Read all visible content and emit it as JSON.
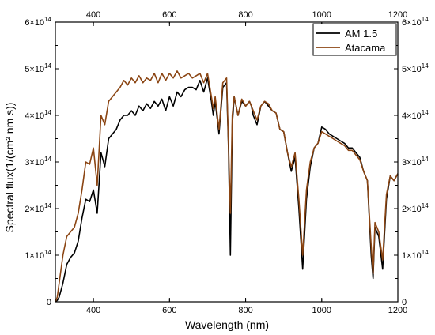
{
  "chart_data": {
    "type": "line",
    "title": "",
    "xlabel": "Wavelength (nm)",
    "ylabel": "Spectral flux(1/(cm² nm s))",
    "xlim": [
      300,
      1200
    ],
    "ylim": [
      0,
      600000000000000.0
    ],
    "x_ticks_bottom": [
      {
        "value": 400,
        "label": "400"
      },
      {
        "value": 600,
        "label": "600"
      },
      {
        "value": 800,
        "label": "800"
      },
      {
        "value": 1000,
        "label": "1000"
      },
      {
        "value": 1200,
        "label": "1200"
      }
    ],
    "x_ticks_top": [
      {
        "value": 400,
        "label": "400"
      },
      {
        "value": 600,
        "label": "600"
      },
      {
        "value": 800,
        "label": "800"
      },
      {
        "value": 1000,
        "label": "1000"
      },
      {
        "value": 1200,
        "label": "1200"
      }
    ],
    "y_ticks": [
      {
        "value": 0,
        "mantissa": "0",
        "exp": ""
      },
      {
        "value": 100000000000000.0,
        "mantissa": "1×10",
        "exp": "14"
      },
      {
        "value": 200000000000000.0,
        "mantissa": "2×10",
        "exp": "14"
      },
      {
        "value": 300000000000000.0,
        "mantissa": "3×10",
        "exp": "14"
      },
      {
        "value": 400000000000000.0,
        "mantissa": "4×10",
        "exp": "14"
      },
      {
        "value": 500000000000000.0,
        "mantissa": "5×10",
        "exp": "14"
      },
      {
        "value": 600000000000000.0,
        "mantissa": "6×10",
        "exp": "14"
      }
    ],
    "legend_position": "top-right",
    "series": [
      {
        "name": "AM 1.5",
        "color": "#000000",
        "x": [
          300,
          305,
          310,
          320,
          330,
          340,
          350,
          360,
          370,
          380,
          390,
          400,
          410,
          420,
          430,
          440,
          450,
          460,
          470,
          480,
          490,
          500,
          510,
          520,
          530,
          540,
          550,
          560,
          570,
          580,
          590,
          600,
          610,
          620,
          630,
          640,
          650,
          660,
          670,
          680,
          690,
          700,
          710,
          715,
          720,
          730,
          740,
          750,
          755,
          760,
          765,
          770,
          780,
          790,
          800,
          810,
          815,
          820,
          830,
          840,
          850,
          860,
          870,
          880,
          890,
          900,
          910,
          920,
          930,
          940,
          950,
          960,
          970,
          980,
          990,
          1000,
          1010,
          1020,
          1030,
          1040,
          1050,
          1060,
          1070,
          1080,
          1090,
          1100,
          1110,
          1120,
          1130,
          1135,
          1140,
          1150,
          1160,
          1170,
          1180,
          1190,
          1200
        ],
        "values": [
          0,
          3000000000000.0,
          10000000000000.0,
          40000000000000.0,
          80000000000000.0,
          95000000000000.0,
          105000000000000.0,
          130000000000000.0,
          180000000000000.0,
          220000000000000.0,
          215000000000000.0,
          240000000000000.0,
          190000000000000.0,
          320000000000000.0,
          290000000000000.0,
          350000000000000.0,
          360000000000000.0,
          370000000000000.0,
          390000000000000.0,
          400000000000000.0,
          400000000000000.0,
          410000000000000.0,
          400000000000000.0,
          420000000000000.0,
          410000000000000.0,
          425000000000000.0,
          415000000000000.0,
          430000000000000.0,
          420000000000000.0,
          435000000000000.0,
          410000000000000.0,
          440000000000000.0,
          420000000000000.0,
          450000000000000.0,
          440000000000000.0,
          455000000000000.0,
          460000000000000.0,
          460000000000000.0,
          455000000000000.0,
          475000000000000.0,
          450000000000000.0,
          480000000000000.0,
          430000000000000.0,
          400000000000000.0,
          430000000000000.0,
          360000000000000.0,
          460000000000000.0,
          470000000000000.0,
          330000000000000.0,
          100000000000000.0,
          380000000000000.0,
          440000000000000.0,
          400000000000000.0,
          430000000000000.0,
          420000000000000.0,
          430000000000000.0,
          420000000000000.0,
          400000000000000.0,
          380000000000000.0,
          420000000000000.0,
          430000000000000.0,
          420000000000000.0,
          410000000000000.0,
          405000000000000.0,
          370000000000000.0,
          365000000000000.0,
          320000000000000.0,
          280000000000000.0,
          310000000000000.0,
          200000000000000.0,
          70000000000000.0,
          220000000000000.0,
          290000000000000.0,
          330000000000000.0,
          340000000000000.0,
          375000000000000.0,
          370000000000000.0,
          360000000000000.0,
          355000000000000.0,
          350000000000000.0,
          345000000000000.0,
          340000000000000.0,
          330000000000000.0,
          330000000000000.0,
          320000000000000.0,
          310000000000000.0,
          280000000000000.0,
          260000000000000.0,
          100000000000000.0,
          50000000000000.0,
          160000000000000.0,
          140000000000000.0,
          70000000000000.0,
          220000000000000.0,
          270000000000000.0,
          260000000000000.0,
          275000000000000.0
        ]
      },
      {
        "name": "Atacama",
        "color": "#8B4513",
        "x": [
          300,
          305,
          310,
          320,
          330,
          340,
          350,
          360,
          370,
          380,
          390,
          400,
          410,
          420,
          430,
          440,
          450,
          460,
          470,
          480,
          490,
          500,
          510,
          520,
          530,
          540,
          550,
          560,
          570,
          580,
          590,
          600,
          610,
          620,
          630,
          640,
          650,
          660,
          670,
          680,
          690,
          700,
          710,
          715,
          720,
          730,
          740,
          750,
          755,
          760,
          765,
          770,
          780,
          790,
          800,
          810,
          815,
          820,
          830,
          840,
          850,
          860,
          870,
          880,
          890,
          900,
          910,
          920,
          930,
          940,
          950,
          960,
          970,
          980,
          990,
          1000,
          1010,
          1020,
          1030,
          1040,
          1050,
          1060,
          1070,
          1080,
          1090,
          1100,
          1110,
          1120,
          1130,
          1135,
          1140,
          1150,
          1160,
          1170,
          1180,
          1190,
          1200
        ],
        "values": [
          0,
          10000000000000.0,
          40000000000000.0,
          100000000000000.0,
          140000000000000.0,
          150000000000000.0,
          160000000000000.0,
          190000000000000.0,
          240000000000000.0,
          300000000000000.0,
          295000000000000.0,
          330000000000000.0,
          250000000000000.0,
          400000000000000.0,
          380000000000000.0,
          430000000000000.0,
          440000000000000.0,
          450000000000000.0,
          460000000000000.0,
          475000000000000.0,
          465000000000000.0,
          480000000000000.0,
          470000000000000.0,
          485000000000000.0,
          470000000000000.0,
          480000000000000.0,
          475000000000000.0,
          490000000000000.0,
          470000000000000.0,
          490000000000000.0,
          475000000000000.0,
          490000000000000.0,
          480000000000000.0,
          495000000000000.0,
          480000000000000.0,
          485000000000000.0,
          490000000000000.0,
          480000000000000.0,
          485000000000000.0,
          490000000000000.0,
          470000000000000.0,
          490000000000000.0,
          440000000000000.0,
          415000000000000.0,
          440000000000000.0,
          370000000000000.0,
          470000000000000.0,
          480000000000000.0,
          340000000000000.0,
          190000000000000.0,
          400000000000000.0,
          440000000000000.0,
          400000000000000.0,
          435000000000000.0,
          420000000000000.0,
          430000000000000.0,
          420000000000000.0,
          410000000000000.0,
          390000000000000.0,
          420000000000000.0,
          430000000000000.0,
          425000000000000.0,
          410000000000000.0,
          405000000000000.0,
          370000000000000.0,
          365000000000000.0,
          320000000000000.0,
          290000000000000.0,
          320000000000000.0,
          220000000000000.0,
          100000000000000.0,
          240000000000000.0,
          300000000000000.0,
          330000000000000.0,
          340000000000000.0,
          365000000000000.0,
          360000000000000.0,
          355000000000000.0,
          350000000000000.0,
          345000000000000.0,
          340000000000000.0,
          335000000000000.0,
          325000000000000.0,
          325000000000000.0,
          315000000000000.0,
          305000000000000.0,
          280000000000000.0,
          260000000000000.0,
          120000000000000.0,
          60000000000000.0,
          170000000000000.0,
          150000000000000.0,
          90000000000000.0,
          230000000000000.0,
          270000000000000.0,
          260000000000000.0,
          275000000000000.0
        ]
      }
    ]
  }
}
